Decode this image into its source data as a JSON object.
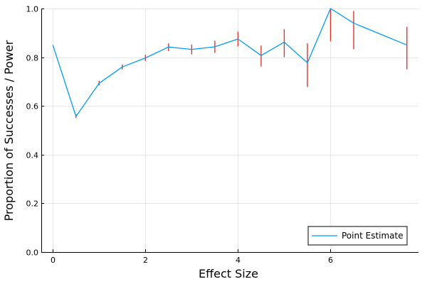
{
  "colors": {
    "line": "#009AFA",
    "error_bar": "#E3342F",
    "grid": "#E6E6E6",
    "axis": "#000000"
  },
  "chart_data": {
    "type": "line",
    "title": "",
    "xlabel": "Effect Size",
    "ylabel": "Proportion of Successes / Power",
    "xlim": [
      -0.25,
      7.9
    ],
    "ylim": [
      0.0,
      1.0
    ],
    "x_ticks": [
      0,
      2,
      4,
      6
    ],
    "x_tick_labels": [
      "0",
      "2",
      "4",
      "6"
    ],
    "y_ticks": [
      0.0,
      0.2,
      0.4,
      0.6,
      0.8,
      1.0
    ],
    "y_tick_labels": [
      "0.0",
      "0.2",
      "0.4",
      "0.6",
      "0.8",
      "1.0"
    ],
    "grid": true,
    "legend": {
      "position": "bottom-right",
      "entries": [
        "Point Estimate"
      ]
    },
    "series": [
      {
        "name": "Point Estimate",
        "x": [
          0,
          0.5,
          1,
          1.5,
          2,
          2.5,
          3,
          3.5,
          4,
          4.5,
          5,
          5.5,
          6,
          6.5,
          7.65
        ],
        "y": [
          0.85,
          0.557,
          0.693,
          0.76,
          0.797,
          0.842,
          0.832,
          0.843,
          0.875,
          0.807,
          0.862,
          0.777,
          1.0,
          0.94,
          0.85
        ],
        "error_low": [
          0.85,
          0.55,
          0.684,
          0.75,
          0.785,
          0.825,
          0.812,
          0.818,
          0.845,
          0.762,
          0.8,
          0.678,
          0.865,
          0.833,
          0.75
        ],
        "error_high": [
          0.85,
          0.565,
          0.703,
          0.77,
          0.81,
          0.857,
          0.852,
          0.868,
          0.905,
          0.848,
          0.915,
          0.857,
          1.0,
          0.99,
          0.925
        ]
      }
    ]
  }
}
